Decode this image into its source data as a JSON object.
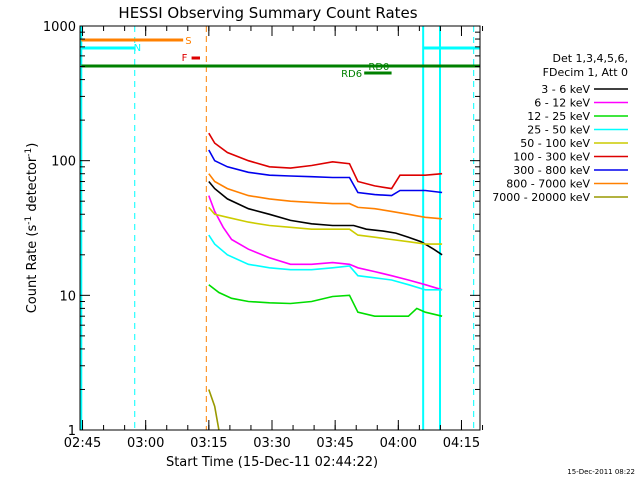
{
  "chart_data": {
    "type": "line",
    "title": "HESSI Observing Summary Count Rates",
    "xlabel": "Start Time (15-Dec-11 02:44:22)",
    "ylabel_main": "Count Rate (s",
    "ylabel_sup1": "-1",
    "ylabel_mid": " detector",
    "ylabel_sup2": "-1",
    "ylabel_end": ")",
    "footer_date": "15-Dec-2011 08:22",
    "y_scale": "log",
    "ylim": [
      1,
      1000
    ],
    "xlim_minutes": [
      0,
      95
    ],
    "x_ticks": [
      {
        "label": "02:45",
        "t": 0.6
      },
      {
        "label": "03:00",
        "t": 15.6
      },
      {
        "label": "03:15",
        "t": 30.6
      },
      {
        "label": "03:30",
        "t": 45.6
      },
      {
        "label": "03:45",
        "t": 60.6
      },
      {
        "label": "04:00",
        "t": 75.6
      },
      {
        "label": "04:15",
        "t": 90.6
      }
    ],
    "y_ticks": [
      {
        "label": "1",
        "v": 1
      },
      {
        "label": "10",
        "v": 10
      },
      {
        "label": "100",
        "v": 100
      },
      {
        "label": "1000",
        "v": 1000
      }
    ],
    "legend": {
      "header1": "Det 1,3,4,5,6,",
      "header2": "FDecim 1, Att 0",
      "entries": [
        {
          "name": "3 - 6 keV",
          "color": "#000000"
        },
        {
          "name": "6 - 12 keV",
          "color": "#ff00ff"
        },
        {
          "name": "12 - 25 keV",
          "color": "#00dd00"
        },
        {
          "name": "25 - 50 keV",
          "color": "#00ffff"
        },
        {
          "name": "50 - 100 keV",
          "color": "#cccc00"
        },
        {
          "name": "100 - 300 keV",
          "color": "#dd0000"
        },
        {
          "name": "300 - 800 keV",
          "color": "#0000ee"
        },
        {
          "name": "800 - 7000 keV",
          "color": "#ff8000"
        },
        {
          "name": "7000 - 20000 keV",
          "color": "#999900"
        }
      ]
    },
    "annotations": {
      "S": {
        "label": "S",
        "color": "#ff8000"
      },
      "N": {
        "label": "N",
        "color": "#00ffff"
      },
      "F": {
        "label": "F",
        "color": "#dd0000"
      },
      "RD0": {
        "label": "RD0",
        "color": "#008000"
      },
      "RD6": {
        "label": "RD6",
        "color": "#008000"
      }
    },
    "series": [
      {
        "name": "3 - 6 keV",
        "color": "#000000",
        "points": [
          [
            30.6,
            70
          ],
          [
            32,
            62
          ],
          [
            35,
            52
          ],
          [
            40,
            44
          ],
          [
            45,
            40
          ],
          [
            50,
            36
          ],
          [
            55,
            34
          ],
          [
            60,
            33
          ],
          [
            65,
            33
          ],
          [
            68,
            31
          ],
          [
            72,
            30
          ],
          [
            75,
            29
          ],
          [
            78,
            27
          ],
          [
            81,
            25
          ],
          [
            84,
            22
          ],
          [
            86,
            20
          ]
        ]
      },
      {
        "name": "6 - 12 keV",
        "color": "#ff00ff",
        "points": [
          [
            30.6,
            55
          ],
          [
            32,
            42
          ],
          [
            34,
            32
          ],
          [
            36,
            26
          ],
          [
            40,
            22
          ],
          [
            45,
            19
          ],
          [
            50,
            17
          ],
          [
            55,
            17
          ],
          [
            60,
            17.5
          ],
          [
            64,
            17
          ],
          [
            66,
            16
          ],
          [
            70,
            15
          ],
          [
            74,
            14
          ],
          [
            78,
            13
          ],
          [
            82,
            12
          ],
          [
            86,
            11
          ]
        ]
      },
      {
        "name": "12 - 25 keV",
        "color": "#00dd00",
        "points": [
          [
            30.6,
            12
          ],
          [
            33,
            10.5
          ],
          [
            36,
            9.5
          ],
          [
            40,
            9
          ],
          [
            45,
            8.8
          ],
          [
            50,
            8.7
          ],
          [
            55,
            9
          ],
          [
            60,
            9.8
          ],
          [
            64,
            10
          ],
          [
            66,
            7.5
          ],
          [
            70,
            7
          ],
          [
            74,
            7
          ],
          [
            78,
            7
          ],
          [
            80,
            8
          ],
          [
            82,
            7.5
          ],
          [
            86,
            7
          ]
        ]
      },
      {
        "name": "25 - 50 keV",
        "color": "#00ffff",
        "points": [
          [
            30.6,
            28
          ],
          [
            32,
            24
          ],
          [
            35,
            20
          ],
          [
            40,
            17
          ],
          [
            45,
            16
          ],
          [
            50,
            15.5
          ],
          [
            55,
            15.5
          ],
          [
            60,
            16
          ],
          [
            64,
            16.5
          ],
          [
            66,
            14
          ],
          [
            70,
            13.5
          ],
          [
            74,
            13
          ],
          [
            78,
            12
          ],
          [
            82,
            11
          ],
          [
            86,
            11
          ]
        ]
      },
      {
        "name": "50 - 100 keV",
        "color": "#cccc00",
        "points": [
          [
            30.6,
            45
          ],
          [
            32,
            40
          ],
          [
            35,
            38
          ],
          [
            40,
            35
          ],
          [
            45,
            33
          ],
          [
            50,
            32
          ],
          [
            55,
            31
          ],
          [
            60,
            31
          ],
          [
            64,
            31
          ],
          [
            66,
            28
          ],
          [
            70,
            27
          ],
          [
            74,
            26
          ],
          [
            78,
            25
          ],
          [
            82,
            24
          ],
          [
            86,
            24
          ]
        ]
      },
      {
        "name": "100 - 300 keV",
        "color": "#dd0000",
        "points": [
          [
            30.6,
            160
          ],
          [
            32,
            135
          ],
          [
            35,
            115
          ],
          [
            40,
            100
          ],
          [
            45,
            90
          ],
          [
            50,
            88
          ],
          [
            55,
            92
          ],
          [
            60,
            98
          ],
          [
            64,
            95
          ],
          [
            66,
            70
          ],
          [
            70,
            65
          ],
          [
            74,
            62
          ],
          [
            76,
            78
          ],
          [
            82,
            78
          ],
          [
            86,
            80
          ]
        ]
      },
      {
        "name": "300 - 800 keV",
        "color": "#0000ee",
        "points": [
          [
            30.6,
            120
          ],
          [
            32,
            100
          ],
          [
            35,
            90
          ],
          [
            40,
            82
          ],
          [
            45,
            78
          ],
          [
            50,
            77
          ],
          [
            55,
            76
          ],
          [
            60,
            75
          ],
          [
            64,
            75
          ],
          [
            66,
            58
          ],
          [
            70,
            56
          ],
          [
            74,
            55
          ],
          [
            76,
            60
          ],
          [
            82,
            60
          ],
          [
            86,
            58
          ]
        ]
      },
      {
        "name": "800 - 7000 keV",
        "color": "#ff8000",
        "points": [
          [
            30.6,
            80
          ],
          [
            32,
            70
          ],
          [
            35,
            62
          ],
          [
            40,
            55
          ],
          [
            45,
            52
          ],
          [
            50,
            50
          ],
          [
            55,
            49
          ],
          [
            60,
            48
          ],
          [
            64,
            48
          ],
          [
            66,
            45
          ],
          [
            70,
            44
          ],
          [
            74,
            42
          ],
          [
            78,
            40
          ],
          [
            82,
            38
          ],
          [
            86,
            37
          ]
        ]
      },
      {
        "name": "7000 - 20000 keV",
        "color": "#999900",
        "points": [
          [
            30.6,
            2
          ],
          [
            32,
            1.5
          ],
          [
            33,
            1
          ]
        ]
      }
    ]
  }
}
